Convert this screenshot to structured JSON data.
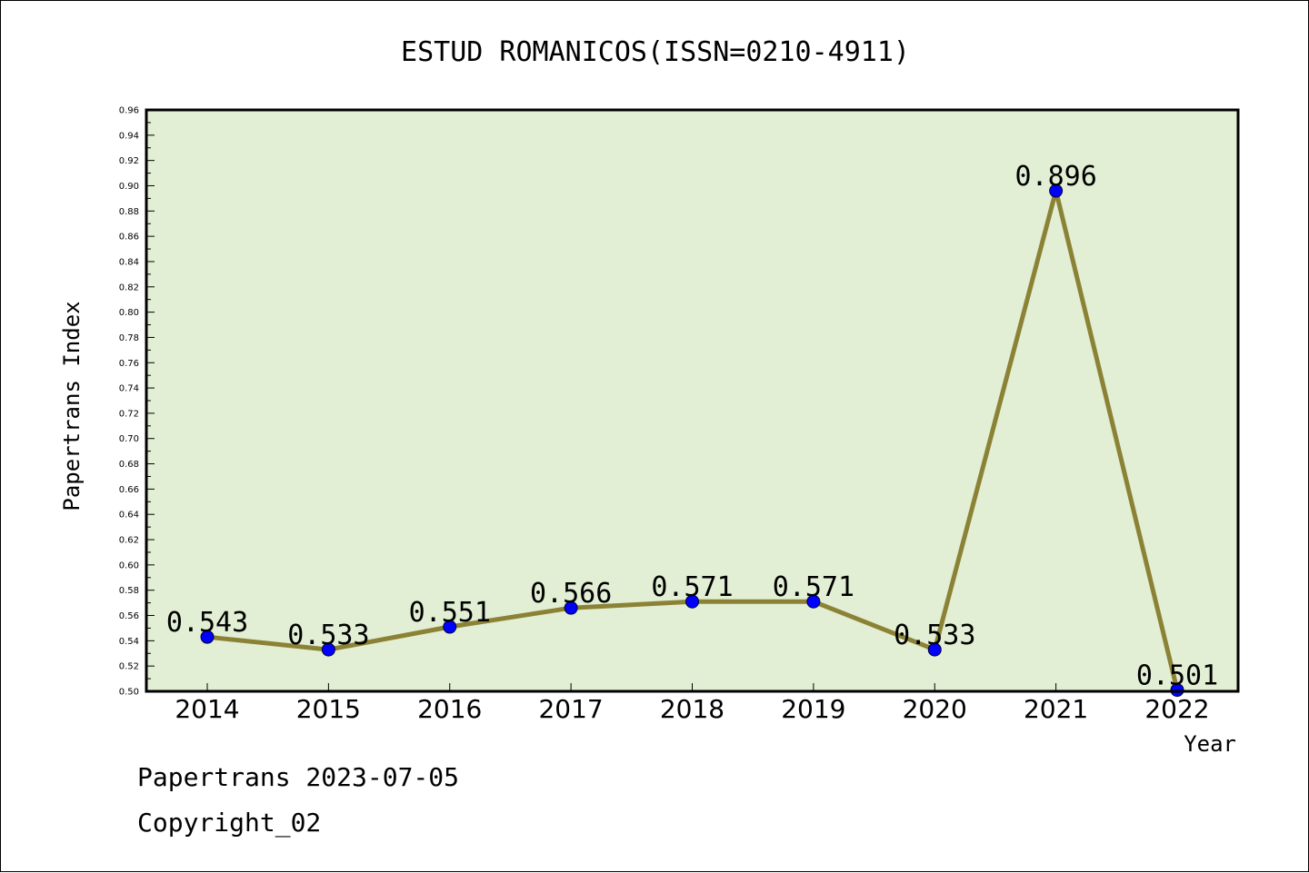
{
  "chart_data": {
    "type": "line",
    "title": "ESTUD ROMANICOS(ISSN=0210-4911)",
    "xlabel": "Year",
    "ylabel": "Papertrans Index",
    "categories": [
      "2014",
      "2015",
      "2016",
      "2017",
      "2018",
      "2019",
      "2020",
      "2021",
      "2022"
    ],
    "series": [
      {
        "values": [
          0.543,
          0.533,
          0.551,
          0.566,
          0.571,
          0.571,
          0.533,
          0.896,
          0.501
        ],
        "labels": [
          "0.543",
          "0.533",
          "0.551",
          "0.566",
          "0.571",
          "0.571",
          "0.533",
          "0.896",
          "0.501"
        ]
      }
    ],
    "ylim": [
      0.5,
      0.96
    ],
    "yticks": [
      "0.50",
      "0.52",
      "0.54",
      "0.56",
      "0.58",
      "0.60",
      "0.62",
      "0.64",
      "0.66",
      "0.68",
      "0.70",
      "0.72",
      "0.74",
      "0.76",
      "0.78",
      "0.80",
      "0.82",
      "0.84",
      "0.86",
      "0.88",
      "0.90",
      "0.92",
      "0.94",
      "0.96"
    ],
    "grid": false,
    "colors": {
      "plot_background": "#e2efd4",
      "line": "#8b8235",
      "marker": "#0000ff"
    }
  },
  "footer": {
    "date_line": "Papertrans 2023-07-05",
    "copyright": "Copyright_02"
  }
}
